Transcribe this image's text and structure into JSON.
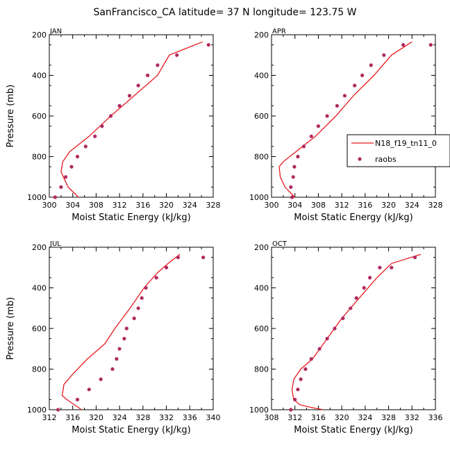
{
  "figure_title": "SanFrancisco_CA  latitude= 37 N longitude= 123.75 W",
  "colors": {
    "model": "#e8191e",
    "obs": "#b02a60",
    "axis": "#000000"
  },
  "legend": {
    "model_label": "N18_f19_tn11_0",
    "obs_label": "raobs",
    "placement": "right of APR panel"
  },
  "chart_data": [
    {
      "type": "line+scatter",
      "panel": "JAN",
      "xlabel": "Moist Static Energy (kJ/kg)",
      "ylabel": "Pressure (mb)",
      "xlim": [
        300,
        328
      ],
      "ylim": [
        1000,
        200
      ],
      "xticks": [
        300,
        304,
        308,
        312,
        316,
        320,
        324,
        328
      ],
      "xminor": [
        302,
        306,
        310,
        314,
        318,
        322,
        326
      ],
      "yticks": [
        200,
        400,
        600,
        800,
        1000
      ],
      "model": {
        "x": [
          305,
          303.2,
          302,
          302.3,
          303.5,
          306.8,
          310.5,
          313.5,
          316.5,
          318.5,
          320.5,
          326.2
        ],
        "y": [
          1000,
          950,
          875,
          825,
          775,
          700,
          600,
          525,
          450,
          400,
          300,
          235
        ]
      },
      "obs": {
        "x": [
          301,
          302,
          302.8,
          303.8,
          304.8,
          306.2,
          307.8,
          309,
          310.5,
          312,
          313.7,
          315.2,
          316.8,
          318.5,
          321.8,
          327.2
        ],
        "y": [
          1000,
          950,
          900,
          850,
          800,
          750,
          700,
          650,
          600,
          550,
          500,
          450,
          400,
          350,
          300,
          250
        ]
      }
    },
    {
      "type": "line+scatter",
      "panel": "APR",
      "xlabel": "Moist Static Energy (kJ/kg)",
      "ylabel": "",
      "xlim": [
        300,
        328
      ],
      "ylim": [
        1000,
        200
      ],
      "xticks": [
        300,
        304,
        308,
        312,
        316,
        320,
        324,
        328
      ],
      "xminor": [
        302,
        306,
        310,
        314,
        318,
        322,
        326
      ],
      "yticks": [
        200,
        400,
        600,
        800,
        1000
      ],
      "model": {
        "x": [
          304,
          302.3,
          301.5,
          301.3,
          302,
          304.2,
          307.5,
          311,
          314,
          317.5,
          320.5,
          324
        ],
        "y": [
          1000,
          950,
          900,
          850,
          825,
          775,
          700,
          600,
          500,
          400,
          300,
          235
        ]
      },
      "obs": {
        "x": [
          303.5,
          303.3,
          303.7,
          303.9,
          304.5,
          305.5,
          306.8,
          308,
          309.5,
          311.2,
          312.5,
          314.2,
          315.5,
          317,
          319.2,
          322.5,
          327.2
        ],
        "y": [
          1000,
          950,
          900,
          850,
          800,
          750,
          700,
          650,
          600,
          550,
          500,
          450,
          400,
          350,
          300,
          250,
          250
        ]
      }
    },
    {
      "type": "line+scatter",
      "panel": "JUL",
      "xlabel": "Moist Static Energy (kJ/kg)",
      "ylabel": "Pressure (mb)",
      "xlim": [
        312,
        340
      ],
      "ylim": [
        1000,
        200
      ],
      "xticks": [
        312,
        316,
        320,
        324,
        328,
        332,
        336,
        340
      ],
      "xminor": [
        314,
        318,
        322,
        326,
        330,
        334,
        338
      ],
      "yticks": [
        200,
        400,
        600,
        800,
        1000
      ],
      "model": {
        "x": [
          317.5,
          315,
          314.2,
          314.5,
          316,
          318.5,
          321.5,
          323.2,
          325.8,
          328.2,
          330.5,
          332.5,
          334.3
        ],
        "y": [
          1000,
          950,
          930,
          875,
          825,
          750,
          675,
          600,
          500,
          400,
          325,
          275,
          235
        ]
      },
      "obs": {
        "x": [
          313.5,
          316.8,
          318.8,
          320.8,
          322.8,
          323.5,
          324,
          324.8,
          325.2,
          326.5,
          327.2,
          327.8,
          328.5,
          330.3,
          332,
          334,
          338.3
        ],
        "y": [
          1000,
          950,
          900,
          850,
          800,
          750,
          700,
          650,
          600,
          550,
          500,
          450,
          400,
          350,
          300,
          250,
          250
        ]
      }
    },
    {
      "type": "line+scatter",
      "panel": "OCT",
      "xlabel": "Moist Static Energy (kJ/kg)",
      "ylabel": "",
      "xlim": [
        308,
        336
      ],
      "ylim": [
        1000,
        200
      ],
      "xticks": [
        308,
        312,
        316,
        320,
        324,
        328,
        332,
        336
      ],
      "xminor": [
        310,
        314,
        318,
        322,
        326,
        330,
        334
      ],
      "yticks": [
        200,
        400,
        600,
        800,
        1000
      ],
      "model": {
        "x": [
          316.8,
          315,
          312.8,
          311.8,
          311.5,
          311.8,
          313,
          315,
          317.5,
          320,
          323,
          326,
          328.5,
          333.5
        ],
        "y": [
          1000,
          990,
          975,
          950,
          900,
          850,
          800,
          750,
          650,
          550,
          450,
          350,
          280,
          235
        ]
      },
      "obs": {
        "x": [
          311.3,
          312,
          312.5,
          313,
          313.8,
          314.8,
          316.2,
          317.5,
          318.8,
          320.2,
          321.5,
          322.5,
          323.8,
          324.8,
          326.5,
          328.5,
          332.5
        ],
        "y": [
          1000,
          950,
          900,
          850,
          800,
          750,
          700,
          650,
          600,
          550,
          500,
          450,
          400,
          350,
          300,
          300,
          250
        ]
      }
    }
  ]
}
